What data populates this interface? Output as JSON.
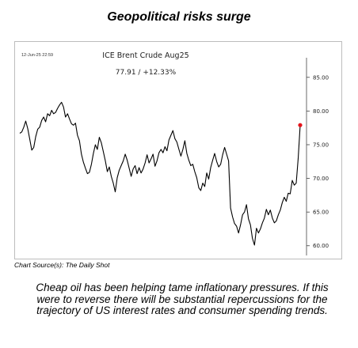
{
  "headline": "Geopolitical risks surge",
  "source": "Chart Source(s): The Daily Shot",
  "caption": "Cheap oil has been helping tame inflationary pressures. If this were to reverse there will be substantial repercussions for the trajectory of US interest rates and consumer spending trends.",
  "chart_data": {
    "type": "line",
    "timestamp": "12-Jun-25 22:59",
    "title": "ICE Brent Crude Aug25",
    "value_label": "77.91  /  +12.33%",
    "ylim": [
      59.5,
      86.5
    ],
    "y_ticks": [
      "85.00",
      "80.00",
      "75.00",
      "70.00",
      "65.00",
      "60.00"
    ],
    "grid": false,
    "colors": {
      "line": "#000000",
      "last_point": "#e5141b",
      "frame": "#bdbdbd"
    },
    "series": [
      {
        "values": [
          76.7,
          76.9,
          77.6,
          78.5,
          77.4,
          75.8,
          74.2,
          74.6,
          76.2,
          77.3,
          77.6,
          78.6,
          79.1,
          78.4,
          79.6,
          79.3,
          80.1,
          79.6,
          79.8,
          80.4,
          80.9,
          81.3,
          80.6,
          79.1,
          79.6,
          78.8,
          78.1,
          77.9,
          78.2,
          76.4,
          75.6,
          73.6,
          72.4,
          71.5,
          70.7,
          70.9,
          72.1,
          73.7,
          75.0,
          74.3,
          76.1,
          75.3,
          74.0,
          72.6,
          71.0,
          71.7,
          70.3,
          69.3,
          68.0,
          70.1,
          71.2,
          71.9,
          72.6,
          73.6,
          72.7,
          71.5,
          70.3,
          71.4,
          71.9,
          70.7,
          71.6,
          70.8,
          71.4,
          72.3,
          73.5,
          72.3,
          72.9,
          73.6,
          71.8,
          72.6,
          73.8,
          74.3,
          73.8,
          74.7,
          74.1,
          75.7,
          76.4,
          77.1,
          75.9,
          75.4,
          74.3,
          73.3,
          74.3,
          75.6,
          73.7,
          72.7,
          71.9,
          72.1,
          71.0,
          70.1,
          68.6,
          68.2,
          69.3,
          68.8,
          70.8,
          69.9,
          71.6,
          72.7,
          73.7,
          72.5,
          71.7,
          72.1,
          73.5,
          74.6,
          73.6,
          72.6,
          65.6,
          64.3,
          63.3,
          62.9,
          61.9,
          63.1,
          64.6,
          65.0,
          66.1,
          64.0,
          63.1,
          61.1,
          60.1,
          62.6,
          61.9,
          62.5,
          63.4,
          64.1,
          65.4,
          64.6,
          65.3,
          64.1,
          63.4,
          63.7,
          64.6,
          65.3,
          66.4,
          67.2,
          66.6,
          67.8,
          67.7,
          69.7,
          69.0,
          69.3,
          73.0,
          77.91
        ]
      }
    ],
    "last_value": 77.91
  }
}
